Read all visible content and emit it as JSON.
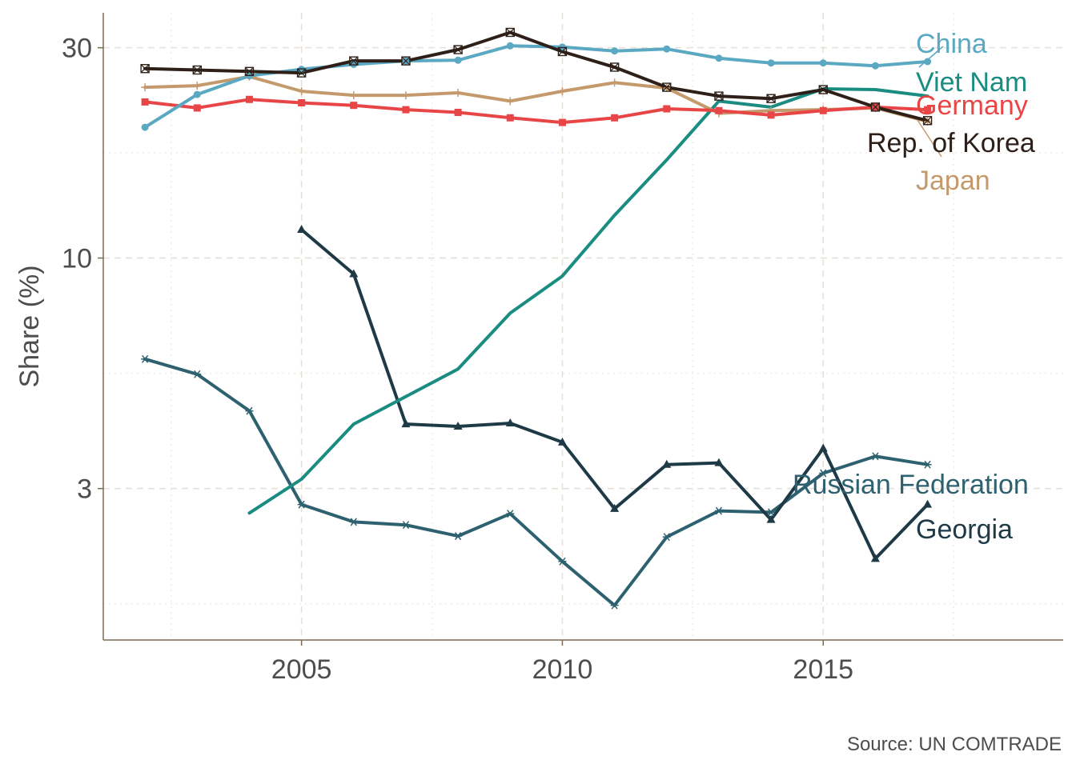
{
  "chart_data": {
    "type": "line",
    "title": "",
    "xlabel": "",
    "ylabel": "Share (%)",
    "yscale": "log",
    "xlim": [
      2001.2,
      2019.6
    ],
    "ylim": [
      1.36,
      36.0
    ],
    "x_ticks": [
      2005,
      2010,
      2015
    ],
    "x_tick_labels": [
      "2005",
      "2010",
      "2015"
    ],
    "y_ticks": [
      3,
      10,
      30
    ],
    "y_tick_labels": [
      "3",
      "10",
      "30"
    ],
    "grid": true,
    "legend": "direct labels at line ends (right)",
    "source": "Source: UN COMTRADE",
    "series": [
      {
        "name": "China",
        "color": "#5aa8c2",
        "marker": "circle",
        "x": [
          2002,
          2003,
          2004,
          2005,
          2006,
          2007,
          2008,
          2009,
          2010,
          2011,
          2012,
          2013,
          2014,
          2015,
          2016,
          2017
        ],
        "values": [
          19.8,
          23.5,
          25.9,
          26.8,
          27.5,
          28.0,
          28.1,
          30.3,
          30.1,
          29.5,
          29.8,
          28.4,
          27.7,
          27.7,
          27.3,
          27.9
        ]
      },
      {
        "name": "Viet Nam",
        "color": "#1a8c82",
        "marker": "none",
        "x": [
          2004,
          2005,
          2006,
          2007,
          2008,
          2009,
          2010,
          2011,
          2012,
          2013,
          2014,
          2015,
          2016,
          2017
        ],
        "values": [
          2.64,
          3.15,
          4.2,
          4.85,
          5.6,
          7.5,
          9.1,
          12.5,
          16.7,
          22.7,
          22.0,
          24.2,
          24.1,
          23.3
        ]
      },
      {
        "name": "Germany",
        "color": "#e84646",
        "marker": "square",
        "x": [
          2002,
          2003,
          2004,
          2005,
          2006,
          2007,
          2008,
          2009,
          2010,
          2011,
          2012,
          2013,
          2014,
          2015,
          2016,
          2017
        ],
        "values": [
          22.6,
          21.9,
          22.9,
          22.5,
          22.2,
          21.7,
          21.4,
          20.8,
          20.3,
          20.8,
          21.8,
          21.6,
          21.1,
          21.6,
          22.0,
          21.7
        ]
      },
      {
        "name": "Rep. of Korea",
        "color": "#2e2019",
        "marker": "square-x",
        "x": [
          2002,
          2003,
          2004,
          2005,
          2006,
          2007,
          2008,
          2009,
          2010,
          2011,
          2012,
          2013,
          2014,
          2015,
          2016,
          2017
        ],
        "values": [
          26.9,
          26.7,
          26.5,
          26.3,
          28.0,
          28.0,
          29.7,
          32.5,
          29.4,
          27.1,
          24.4,
          23.3,
          23.0,
          24.1,
          22.0,
          20.5
        ]
      },
      {
        "name": "Japan",
        "color": "#c49a6c",
        "marker": "plus",
        "x": [
          2002,
          2003,
          2004,
          2005,
          2006,
          2007,
          2008,
          2009,
          2010,
          2011,
          2012,
          2013,
          2014,
          2015,
          2016,
          2017
        ],
        "values": [
          24.4,
          24.6,
          25.8,
          23.9,
          23.4,
          23.4,
          23.7,
          22.7,
          23.9,
          25.0,
          24.3,
          21.3,
          21.6,
          21.7,
          21.9,
          20.4
        ]
      },
      {
        "name": "Russian Federation",
        "color": "#2e6170",
        "marker": "asterisk",
        "x": [
          2002,
          2003,
          2004,
          2005,
          2006,
          2007,
          2008,
          2009,
          2010,
          2011,
          2012,
          2013,
          2014,
          2015,
          2016,
          2017
        ],
        "values": [
          5.9,
          5.45,
          4.5,
          2.76,
          2.52,
          2.48,
          2.34,
          2.63,
          2.05,
          1.63,
          2.33,
          2.67,
          2.65,
          3.25,
          3.55,
          3.4
        ]
      },
      {
        "name": "Georgia",
        "color": "#1f3a47",
        "marker": "triangle",
        "x": [
          2005,
          2006,
          2007,
          2008,
          2009,
          2010,
          2011,
          2012,
          2013,
          2014,
          2015,
          2016,
          2017
        ],
        "values": [
          11.6,
          9.2,
          4.2,
          4.15,
          4.22,
          3.82,
          2.7,
          3.4,
          3.43,
          2.55,
          3.7,
          2.08,
          2.76
        ]
      }
    ],
    "labels": [
      {
        "series": "China",
        "text": "China"
      },
      {
        "series": "Viet Nam",
        "text": "Viet Nam"
      },
      {
        "series": "Germany",
        "text": "Germany"
      },
      {
        "series": "Rep. of Korea",
        "text": "Rep. of Korea"
      },
      {
        "series": "Japan",
        "text": "Japan"
      },
      {
        "series": "Russian Federation",
        "text": "Russian Federation"
      },
      {
        "series": "Georgia",
        "text": "Georgia"
      }
    ]
  }
}
